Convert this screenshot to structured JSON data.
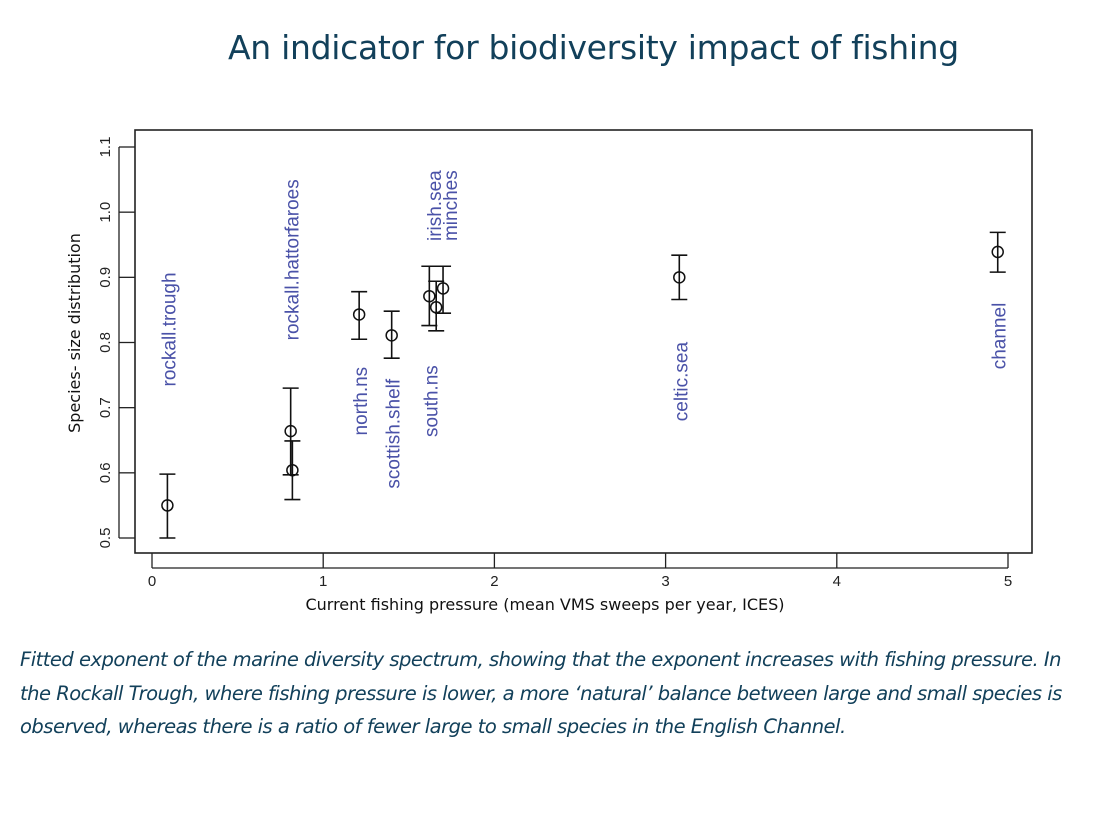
{
  "page": {
    "title": "An indicator for biodiversity impact of fishing",
    "caption": "Fitted exponent of the marine diversity spectrum, showing that the exponent increases with fishing pressure. In the Rockall Trough, where fishing pressure is lower, a more ‘natural’ balance between large and small species is observed, whereas there is a ratio of fewer large to small species in the English Channel."
  },
  "colors": {
    "title": "#12405a",
    "caption": "#12405a",
    "point_label": "#4a52a8",
    "marks": "#111111"
  },
  "chart_data": {
    "type": "scatter",
    "title": "An indicator for biodiversity impact of fishing",
    "xlabel": "Current fishing pressure (mean VMS sweeps per year, ICES)",
    "ylabel": "Species- size distribution",
    "xlim": [
      0,
      5
    ],
    "ylim": [
      0.5,
      1.1
    ],
    "xticks": [
      0,
      1,
      2,
      3,
      4,
      5
    ],
    "xtick_labels": [
      "0",
      "1",
      "2",
      "3",
      "4",
      "5"
    ],
    "yticks": [
      0.5,
      0.6,
      0.7,
      0.8,
      0.9,
      1.0,
      1.1
    ],
    "ytick_labels": [
      "0.5",
      "0.6",
      "0.7",
      "0.8",
      "0.9",
      "1.0",
      "1.1"
    ],
    "grid": false,
    "legend": "none",
    "marker": "open-circle",
    "error_bars": true,
    "points": [
      {
        "label": "rockall.trough",
        "x": 0.09,
        "y": 0.55,
        "lo": 0.5,
        "hi": 0.598,
        "label_y": 0.82
      },
      {
        "label": "rockall.hatton",
        "x": 0.81,
        "y": 0.664,
        "lo": 0.597,
        "hi": 0.73,
        "label_y": 0.89
      },
      {
        "label": "faroes",
        "x": 0.82,
        "y": 0.604,
        "lo": 0.559,
        "hi": 0.649,
        "label_y": 1.01
      },
      {
        "label": "north.ns",
        "x": 1.21,
        "y": 0.843,
        "lo": 0.805,
        "hi": 0.878,
        "label_y": 0.71
      },
      {
        "label": "scottish.shelf",
        "x": 1.4,
        "y": 0.811,
        "lo": 0.776,
        "hi": 0.848,
        "label_y": 0.66
      },
      {
        "label": "south.ns",
        "x": 1.62,
        "y": 0.871,
        "lo": 0.826,
        "hi": 0.917,
        "label_y": 0.71
      },
      {
        "label": "irish.sea",
        "x": 1.66,
        "y": 0.854,
        "lo": 0.818,
        "hi": 0.894,
        "label_y": 1.01
      },
      {
        "label": "minches",
        "x": 1.7,
        "y": 0.883,
        "lo": 0.845,
        "hi": 0.917,
        "label_y": 1.01
      },
      {
        "label": "celtic.sea",
        "x": 3.08,
        "y": 0.9,
        "lo": 0.866,
        "hi": 0.934,
        "label_y": 0.74
      },
      {
        "label": "channel",
        "x": 4.94,
        "y": 0.939,
        "lo": 0.908,
        "hi": 0.969,
        "label_y": 0.81
      }
    ]
  }
}
